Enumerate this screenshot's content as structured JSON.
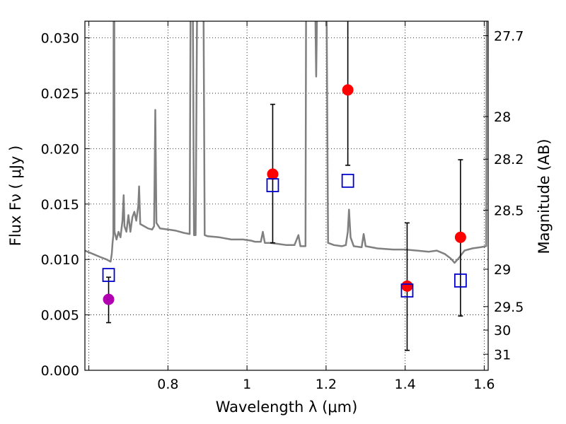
{
  "chart_data": {
    "type": "scatter",
    "xlabel": "Wavelength  λ (μm)",
    "ylabel": "Flux  Fν  ( μJy )",
    "y2label": "Magnitude (AB)",
    "xlim": [
      0.59,
      1.61
    ],
    "ylim": [
      0.0,
      0.0315
    ],
    "grid": true,
    "xticks": [
      0.6,
      0.8,
      1.0,
      1.2,
      1.4,
      1.6
    ],
    "xtick_labels": [
      "",
      "0.8",
      "1",
      "1.2",
      "1.4",
      "1.6"
    ],
    "yticks": [
      0.0,
      0.005,
      0.01,
      0.015,
      0.02,
      0.025,
      0.03
    ],
    "ytick_labels": [
      "0.000",
      "0.005",
      "0.010",
      "0.015",
      "0.020",
      "0.025",
      "0.030"
    ],
    "y2_ticks": [
      {
        "label": "27.7",
        "flux": 0.03019
      },
      {
        "label": "28",
        "flux": 0.0229
      },
      {
        "label": "28.2",
        "flux": 0.01905
      },
      {
        "label": "28.5",
        "flux": 0.01445
      },
      {
        "label": "29",
        "flux": 0.00912
      },
      {
        "label": "29.5",
        "flux": 0.00575
      },
      {
        "label": "30",
        "flux": 0.00363
      },
      {
        "label": "31",
        "flux": 0.00145
      }
    ],
    "model_spectrum": {
      "color": "#808080",
      "points": [
        [
          0.59,
          0.0108
        ],
        [
          0.61,
          0.0105
        ],
        [
          0.63,
          0.0102
        ],
        [
          0.645,
          0.01
        ],
        [
          0.655,
          0.0098
        ],
        [
          0.658,
          0.0105
        ],
        [
          0.66,
          0.0115
        ],
        [
          0.662,
          0.0122
        ],
        [
          0.663,
          0.04
        ],
        [
          0.664,
          0.04
        ],
        [
          0.665,
          0.0125
        ],
        [
          0.67,
          0.0118
        ],
        [
          0.675,
          0.0125
        ],
        [
          0.68,
          0.012
        ],
        [
          0.685,
          0.0135
        ],
        [
          0.688,
          0.0158
        ],
        [
          0.69,
          0.013
        ],
        [
          0.695,
          0.0125
        ],
        [
          0.7,
          0.014
        ],
        [
          0.705,
          0.0125
        ],
        [
          0.71,
          0.0138
        ],
        [
          0.715,
          0.0143
        ],
        [
          0.72,
          0.0135
        ],
        [
          0.725,
          0.0148
        ],
        [
          0.727,
          0.0166
        ],
        [
          0.73,
          0.0132
        ],
        [
          0.74,
          0.013
        ],
        [
          0.75,
          0.0128
        ],
        [
          0.76,
          0.0127
        ],
        [
          0.765,
          0.013
        ],
        [
          0.768,
          0.0235
        ],
        [
          0.771,
          0.0133
        ],
        [
          0.78,
          0.0128
        ],
        [
          0.8,
          0.0127
        ],
        [
          0.82,
          0.0126
        ],
        [
          0.84,
          0.0124
        ],
        [
          0.855,
          0.0123
        ],
        [
          0.858,
          0.04
        ],
        [
          0.862,
          0.04
        ],
        [
          0.866,
          0.0122
        ],
        [
          0.87,
          0.0122
        ],
        [
          0.875,
          0.04
        ],
        [
          0.885,
          0.04
        ],
        [
          0.889,
          0.04
        ],
        [
          0.893,
          0.0122
        ],
        [
          0.9,
          0.0121
        ],
        [
          0.93,
          0.012
        ],
        [
          0.96,
          0.0118
        ],
        [
          0.99,
          0.0118
        ],
        [
          1.01,
          0.0117
        ],
        [
          1.02,
          0.0116
        ],
        [
          1.035,
          0.0116
        ],
        [
          1.04,
          0.0125
        ],
        [
          1.045,
          0.0115
        ],
        [
          1.06,
          0.0115
        ],
        [
          1.08,
          0.0114
        ],
        [
          1.1,
          0.0113
        ],
        [
          1.12,
          0.0113
        ],
        [
          1.13,
          0.0122
        ],
        [
          1.135,
          0.0112
        ],
        [
          1.148,
          0.0112
        ],
        [
          1.15,
          0.04
        ],
        [
          1.155,
          0.04
        ],
        [
          1.16,
          0.04
        ],
        [
          1.17,
          0.04
        ],
        [
          1.175,
          0.0265
        ],
        [
          1.18,
          0.04
        ],
        [
          1.19,
          0.04
        ],
        [
          1.2,
          0.04
        ],
        [
          1.205,
          0.0115
        ],
        [
          1.22,
          0.0113
        ],
        [
          1.24,
          0.0112
        ],
        [
          1.25,
          0.0113
        ],
        [
          1.255,
          0.0125
        ],
        [
          1.258,
          0.0145
        ],
        [
          1.262,
          0.012
        ],
        [
          1.27,
          0.0112
        ],
        [
          1.29,
          0.0111
        ],
        [
          1.295,
          0.0123
        ],
        [
          1.3,
          0.0112
        ],
        [
          1.33,
          0.011
        ],
        [
          1.37,
          0.0109
        ],
        [
          1.4,
          0.0109
        ],
        [
          1.43,
          0.0108
        ],
        [
          1.46,
          0.0107
        ],
        [
          1.48,
          0.0108
        ],
        [
          1.5,
          0.0105
        ],
        [
          1.515,
          0.0101
        ],
        [
          1.525,
          0.0097
        ],
        [
          1.535,
          0.0101
        ],
        [
          1.55,
          0.0108
        ],
        [
          1.57,
          0.011
        ],
        [
          1.59,
          0.0111
        ],
        [
          1.605,
          0.0112
        ],
        [
          1.607,
          0.04
        ]
      ]
    },
    "series": [
      {
        "marker": "circle",
        "color": "#ff0000",
        "points": [
          {
            "x": 1.065,
            "y": 0.0177,
            "ylow": 0.0115,
            "yhigh": 0.024
          },
          {
            "x": 1.255,
            "y": 0.0253,
            "ylow": 0.0185,
            "yhigh": 0.032
          },
          {
            "x": 1.405,
            "y": 0.0076,
            "ylow": 0.0018,
            "yhigh": 0.0133
          },
          {
            "x": 1.54,
            "y": 0.012,
            "ylow": 0.0049,
            "yhigh": 0.019
          }
        ]
      },
      {
        "marker": "circle",
        "color": "#b000b0",
        "points": [
          {
            "x": 0.65,
            "y": 0.0064,
            "ylow": 0.0043,
            "yhigh": 0.0084
          }
        ]
      },
      {
        "marker": "square",
        "color": "#0000cc",
        "points": [
          {
            "x": 0.65,
            "y": 0.0086
          },
          {
            "x": 1.065,
            "y": 0.0167
          },
          {
            "x": 1.255,
            "y": 0.0171
          },
          {
            "x": 1.405,
            "y": 0.0072
          },
          {
            "x": 1.54,
            "y": 0.0081
          }
        ]
      }
    ]
  }
}
